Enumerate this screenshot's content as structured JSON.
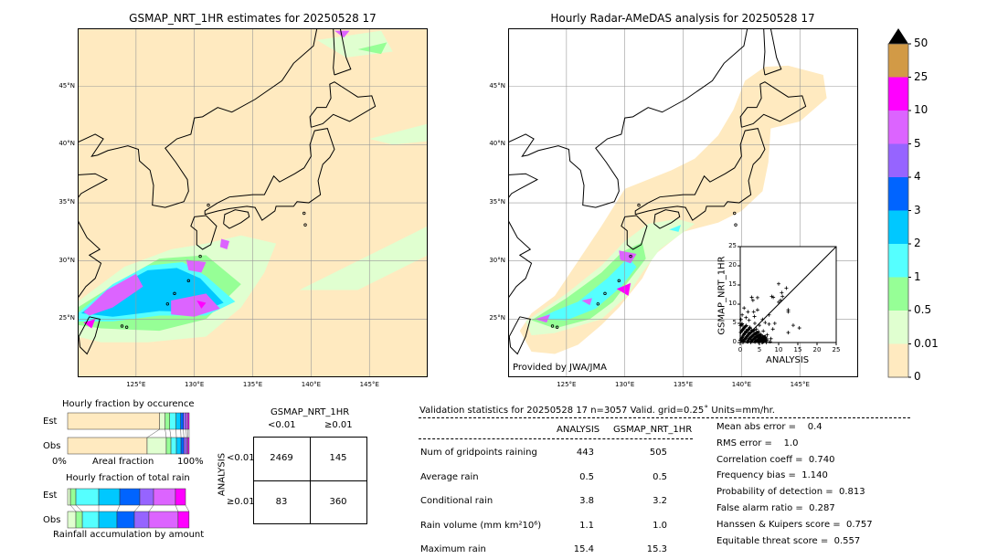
{
  "colors": {
    "bins": [
      "#ffeac0",
      "#e0ffd0",
      "#96ff96",
      "#55ffff",
      "#00c8ff",
      "#0064ff",
      "#9664ff",
      "#dc64ff",
      "#ff00ff",
      "#d29a46"
    ],
    "over": "#000000"
  },
  "chart_data": [
    {
      "type": "heatmap",
      "title": "GSMAP_NRT_1HR estimates for 20250528 17",
      "xticks": [
        "125°E",
        "130°E",
        "135°E",
        "140°E",
        "145°E"
      ],
      "yticks": [
        "45°N",
        "40°N",
        "35°N",
        "30°N",
        "25°N"
      ],
      "lon_range": [
        120,
        150
      ],
      "lat_range": [
        20,
        50
      ]
    },
    {
      "type": "heatmap",
      "title": "Hourly Radar-AMeDAS analysis for 20250528 17",
      "xticks": [
        "125°E",
        "130°E",
        "135°E",
        "140°E",
        "145°E"
      ],
      "yticks": [
        "45°N",
        "40°N",
        "35°N",
        "30°N",
        "25°N"
      ],
      "lon_range": [
        120,
        150
      ],
      "lat_range": [
        20,
        50
      ],
      "annotation": "Provided by JWA/JMA"
    },
    {
      "type": "scatter",
      "xlabel": "ANALYSIS",
      "ylabel": "GSMAP_NRT_1HR",
      "xlim": [
        0,
        25
      ],
      "ylim": [
        0,
        25
      ],
      "xticks": [
        "0",
        "5",
        "10",
        "15",
        "20",
        "25"
      ],
      "yticks": [
        "0",
        "5",
        "10",
        "15",
        "20",
        "25"
      ],
      "points": [
        [
          0.3,
          0.5
        ],
        [
          0.5,
          1.2
        ],
        [
          0.8,
          0.3
        ],
        [
          1,
          2
        ],
        [
          1.2,
          0.8
        ],
        [
          1.5,
          3
        ],
        [
          1.8,
          1.5
        ],
        [
          2,
          0.2
        ],
        [
          2.2,
          2.5
        ],
        [
          2.5,
          4
        ],
        [
          2.8,
          1
        ],
        [
          3,
          3.2
        ],
        [
          3.2,
          0.6
        ],
        [
          3.5,
          2
        ],
        [
          3.8,
          5
        ],
        [
          4,
          1.5
        ],
        [
          4.2,
          3.5
        ],
        [
          4.5,
          0.4
        ],
        [
          4.8,
          2.8
        ],
        [
          5,
          4.5
        ],
        [
          5.5,
          1.2
        ],
        [
          6,
          3
        ],
        [
          6.5,
          5.2
        ],
        [
          7,
          2
        ],
        [
          7.5,
          4.8
        ],
        [
          8,
          1
        ],
        [
          8.5,
          3.5
        ],
        [
          9,
          5
        ],
        [
          0.5,
          4.5
        ],
        [
          0.2,
          6
        ],
        [
          1,
          9
        ],
        [
          2,
          8
        ],
        [
          3,
          11.8
        ],
        [
          3.3,
          11
        ],
        [
          4.5,
          11.7
        ],
        [
          3.5,
          8
        ],
        [
          4.5,
          8.5
        ],
        [
          5.8,
          6
        ],
        [
          7.5,
          7.2
        ],
        [
          8.2,
          12
        ],
        [
          8.6,
          11.8
        ],
        [
          10,
          15.3
        ],
        [
          10,
          10.5
        ],
        [
          10.5,
          11
        ],
        [
          10.8,
          13
        ],
        [
          11,
          12
        ],
        [
          12,
          14.2
        ],
        [
          12.5,
          8.5
        ],
        [
          12.5,
          8
        ],
        [
          12.5,
          2.6
        ],
        [
          13.8,
          4.5
        ],
        [
          15.4,
          3.8
        ],
        [
          6.5,
          0.5
        ],
        [
          7.8,
          0.2
        ],
        [
          1.5,
          6.5
        ],
        [
          0.5,
          7.2
        ],
        [
          2.3,
          5.8
        ],
        [
          3.7,
          6.8
        ]
      ]
    },
    {
      "type": "bar",
      "title": "Hourly fraction by occurence",
      "xlabel": "Areal fraction",
      "xtick_left": "0%",
      "xtick_right": "100%",
      "rows": [
        {
          "name": "Est",
          "fractions": [
            0.757,
            0.045,
            0.038,
            0.052,
            0.038,
            0.023,
            0.022,
            0.015,
            0.01
          ]
        },
        {
          "name": "Obs",
          "fractions": [
            0.654,
            0.158,
            0.038,
            0.045,
            0.038,
            0.023,
            0.022,
            0.012,
            0.01
          ]
        }
      ]
    },
    {
      "type": "bar",
      "title": "Hourly fraction of total rain",
      "xlabel": "Rainfall accumulation by amount",
      "rows": [
        {
          "name": "Est",
          "fractions": [
            0.023,
            0.045,
            0.188,
            0.173,
            0.165,
            0.113,
            0.18,
            0.083
          ]
        },
        {
          "name": "Obs",
          "fractions": [
            0.068,
            0.053,
            0.135,
            0.15,
            0.143,
            0.12,
            0.24,
            0.09
          ]
        }
      ]
    }
  ],
  "colorbar": {
    "labels": [
      "50",
      "25",
      "10",
      "5",
      "4",
      "3",
      "2",
      "1",
      "0.5",
      "0.01",
      "0"
    ]
  },
  "contingency": {
    "title": "GSMAP_NRT_1HR",
    "col_labels": [
      "<0.01",
      "≥0.01"
    ],
    "row_axis": "ANALYSIS",
    "row_labels": [
      "<0.01",
      "≥0.01"
    ],
    "cells": [
      [
        "2469",
        "145"
      ],
      [
        "83",
        "360"
      ]
    ]
  },
  "stats": {
    "header": "Validation statistics for 20250528 17  n=3057 Valid. grid=0.25˚ Units=mm/hr.",
    "col_analysis": "ANALYSIS",
    "col_gsmap": "GSMAP_NRT_1HR",
    "rows": [
      {
        "label": "Num of gridpoints raining",
        "a": "443",
        "g": "505"
      },
      {
        "label": "Average rain",
        "a": "0.5",
        "g": "0.5"
      },
      {
        "label": "Conditional rain",
        "a": "3.8",
        "g": "3.2"
      },
      {
        "label": "Rain volume (mm km²10⁶)",
        "a": "1.1",
        "g": "1.0"
      },
      {
        "label": "Maximum rain",
        "a": "15.4",
        "g": "15.3"
      }
    ],
    "scores": [
      "Mean abs error =    0.4",
      "RMS error =    1.0",
      "Correlation coeff =  0.740",
      "Frequency bias =  1.140",
      "Probability of detection =  0.813",
      "False alarm ratio =  0.287",
      "Hanssen & Kuipers score =  0.757",
      "Equitable threat score =  0.557"
    ]
  }
}
